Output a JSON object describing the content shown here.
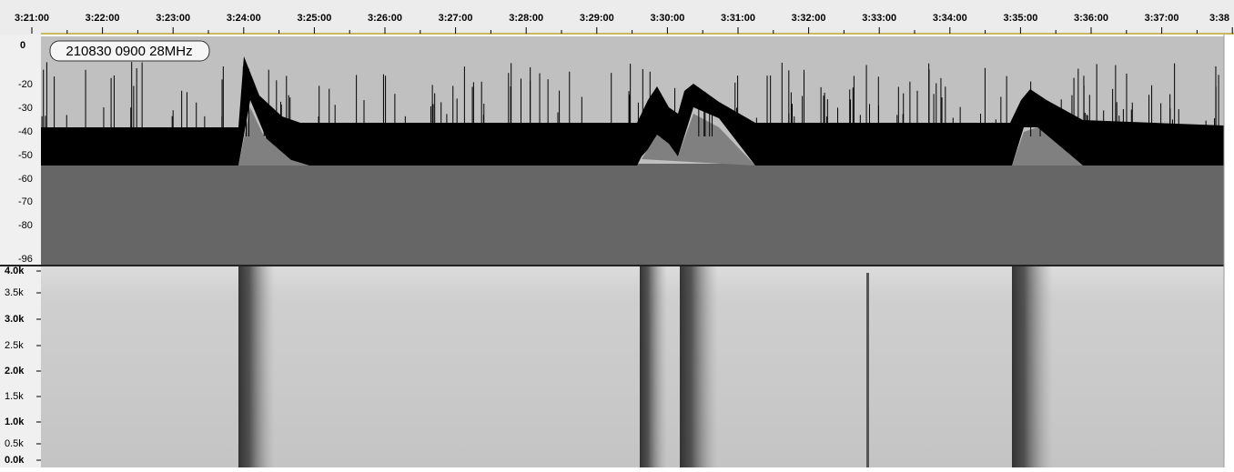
{
  "ruler": {
    "labels": [
      "3:21:00",
      "3:22:00",
      "3:23:00",
      "3:24:00",
      "3:25:00",
      "3:26:00",
      "3:27:00",
      "3:28:00",
      "3:29:00",
      "3:30:00",
      "3:31:00",
      "3:32:00",
      "3:33:00",
      "3:34:00",
      "3:35:00",
      "3:36:00",
      "3:37:00",
      "3:38"
    ]
  },
  "track": {
    "name": "210830 0900 28MHz",
    "db_labels": [
      "0",
      "-20",
      "-30",
      "-40",
      "-50",
      "-60",
      "-70",
      "-80",
      "-96"
    ],
    "freq_labels": [
      "4.0k",
      "3.5k",
      "3.0k",
      "2.5k",
      "2.0k",
      "1.5k",
      "1.0k",
      "0.5k",
      "0.0k"
    ]
  }
}
